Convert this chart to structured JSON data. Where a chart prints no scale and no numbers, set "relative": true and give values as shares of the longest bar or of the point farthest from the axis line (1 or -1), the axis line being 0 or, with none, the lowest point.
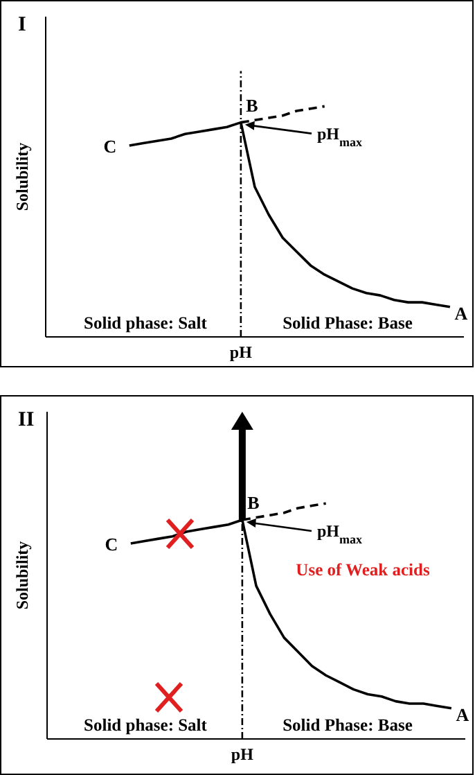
{
  "chart_data": [
    {
      "type": "line",
      "title": "I",
      "xlabel": "pH",
      "ylabel": "Solubility",
      "relative": true,
      "categories": [
        null,
        null,
        null,
        null,
        null,
        null,
        null,
        null,
        null,
        null,
        null,
        null,
        null,
        null,
        null,
        null,
        null,
        null,
        null,
        null,
        null,
        null,
        null,
        null,
        null,
        null,
        null,
        null,
        null,
        null,
        null
      ],
      "series": [
        {
          "color": "#000000",
          "values": [
            null,
            null,
            null,
            null,
            null,
            null,
            0.83,
            0.84,
            0.85,
            0.86,
            0.88,
            0.89,
            0.9,
            0.91,
            0.93,
            0.65,
            0.53,
            0.43,
            0.37,
            0.31,
            0.27,
            0.24,
            0.21,
            0.19,
            0.18,
            0.16,
            0.15,
            0.15,
            0.14,
            0.13,
            null
          ]
        },
        {
          "color": "#000000",
          "line_style": "dashed",
          "values": [
            null,
            null,
            null,
            null,
            null,
            null,
            null,
            null,
            null,
            null,
            null,
            null,
            null,
            null,
            0.93,
            0.94,
            0.95,
            0.96,
            0.98,
            0.99,
            1.0,
            null,
            null,
            null,
            null,
            null,
            null,
            null,
            null,
            null,
            null
          ]
        }
      ],
      "annotations": [
        "C",
        "B",
        "A",
        "pH$_{max}$",
        "Solid phase: Salt",
        "Solid Phase: Base"
      ]
    },
    {
      "type": "line",
      "title": "II",
      "xlabel": "pH",
      "ylabel": "Solubility",
      "relative": true,
      "categories": [
        null,
        null,
        null,
        null,
        null,
        null,
        null,
        null,
        null,
        null,
        null,
        null,
        null,
        null,
        null,
        null,
        null,
        null,
        null,
        null,
        null,
        null,
        null,
        null,
        null,
        null,
        null,
        null,
        null,
        null,
        null
      ],
      "series": [
        {
          "color": "#000000",
          "values": [
            null,
            null,
            null,
            null,
            null,
            null,
            0.83,
            0.84,
            0.85,
            0.86,
            0.88,
            0.89,
            0.9,
            0.91,
            0.93,
            0.65,
            0.53,
            0.43,
            0.37,
            0.31,
            0.27,
            0.24,
            0.21,
            0.19,
            0.18,
            0.16,
            0.15,
            0.15,
            0.14,
            0.13,
            null
          ]
        },
        {
          "color": "#000000",
          "line_style": "dashed",
          "values": [
            null,
            null,
            null,
            null,
            null,
            null,
            null,
            null,
            null,
            null,
            null,
            null,
            null,
            null,
            0.93,
            0.94,
            0.95,
            0.96,
            0.98,
            0.99,
            1.0,
            null,
            null,
            null,
            null,
            null,
            null,
            null,
            null,
            null,
            null
          ]
        }
      ],
      "annotations": [
        "C",
        "B",
        "A",
        "pH$_{max}$",
        "Solid phase: Salt",
        "Solid Phase: Base",
        "Use of Weak acids"
      ]
    }
  ]
}
